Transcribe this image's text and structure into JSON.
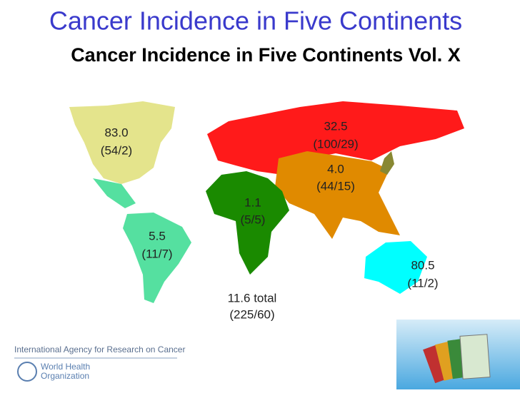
{
  "header": {
    "title": "Cancer Incidence in Five Continents",
    "subtitle": "Cancer Incidence in Five Continents Vol. X"
  },
  "regions": [
    {
      "rate": "83.0",
      "counts": "(54/2)"
    },
    {
      "rate": "32.5",
      "counts": "(100/29)"
    },
    {
      "rate": "4.0",
      "counts": "(44/15)"
    },
    {
      "rate": "1.1",
      "counts": "(5/5)"
    },
    {
      "rate": "5.5",
      "counts": "(11/7)"
    },
    {
      "rate": "80.5",
      "counts": "(11/2)"
    }
  ],
  "total": {
    "rate": "11.6 total",
    "counts": "(225/60)"
  },
  "footer": {
    "agency": "International Agency for Research on Cancer",
    "who_line1": "World Health",
    "who_line2": "Organization"
  }
}
